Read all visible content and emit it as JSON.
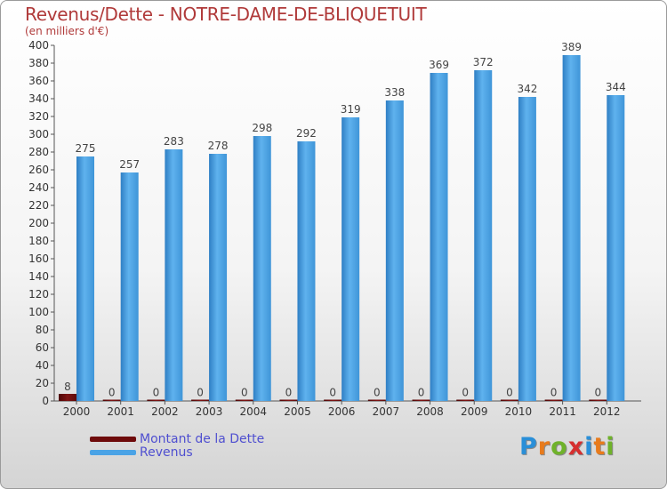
{
  "chart_data": {
    "type": "bar",
    "title": "Revenus/Dette - NOTRE-DAME-DE-BLIQUETUIT",
    "subtitle": "(en milliers d'€)",
    "categories": [
      "2000",
      "2001",
      "2002",
      "2003",
      "2004",
      "2005",
      "2006",
      "2007",
      "2008",
      "2009",
      "2010",
      "2011",
      "2012"
    ],
    "series": [
      {
        "name": "Montant de la Dette",
        "color": "#6e0b0b",
        "values": [
          8,
          0,
          0,
          0,
          0,
          0,
          0,
          0,
          0,
          0,
          0,
          0,
          0
        ]
      },
      {
        "name": "Revenus",
        "color": "#4aa3e6",
        "values": [
          275,
          257,
          283,
          278,
          298,
          292,
          319,
          338,
          369,
          372,
          342,
          389,
          344
        ]
      }
    ],
    "ylim": [
      0,
      400
    ],
    "y_ticks": [
      0,
      20,
      40,
      60,
      80,
      100,
      120,
      140,
      160,
      180,
      200,
      220,
      240,
      260,
      280,
      300,
      320,
      340,
      360,
      380,
      400
    ],
    "grid": false,
    "legend_position": "bottom-left"
  },
  "brand": {
    "letters": [
      "P",
      "r",
      "o",
      "x",
      "i",
      "t",
      "i"
    ],
    "colors": [
      "#2a8fd8",
      "#e87b1c",
      "#6fb22a",
      "#d62f2f",
      "#2a8fd8",
      "#e87b1c",
      "#6fb22a"
    ]
  }
}
